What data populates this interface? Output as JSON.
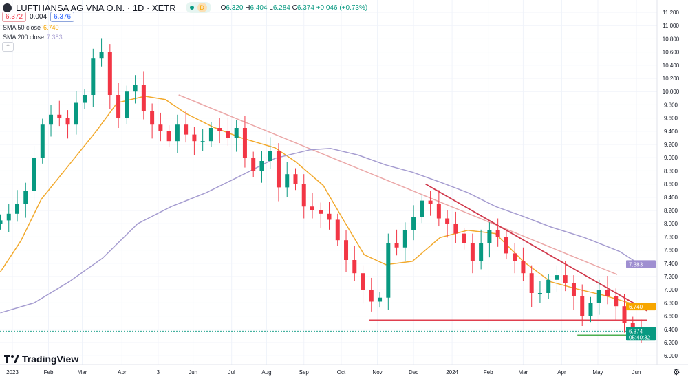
{
  "header": {
    "symbol_title": "LUFTHANSA AG VNA O.N. · 1D · XETR",
    "interval_badge": "D",
    "ohlc": {
      "o_label": "O",
      "o": "6.320",
      "h_label": "H",
      "h": "6.404",
      "l_label": "L",
      "l": "6.284",
      "c_label": "C",
      "c": "6.374",
      "change": "+0.046 (+0.73%)"
    },
    "bid": "6.372",
    "spread": "0.004",
    "ask": "6.376",
    "indicators": [
      {
        "label": "SMA 50 close",
        "value": "6.740",
        "color": "#f7a600"
      },
      {
        "label": "SMA 200 close",
        "value": "7.383",
        "color": "#9f95c8"
      }
    ],
    "collapse_icon": "chevron-up-icon"
  },
  "branding": {
    "logo_text": "TradingView"
  },
  "colors": {
    "up": "#089981",
    "down": "#f23645",
    "sma50": "#f2a92c",
    "sma200": "#a59cd0",
    "trend_light": "#eba7a7",
    "trend_red": "#d0384b",
    "support_red": "#e0404f",
    "support_green": "#4caf50"
  },
  "chart_data": {
    "type": "candlestick",
    "title": "",
    "y_range": [
      5.9,
      11.3
    ],
    "y_ticks": [
      "11.200",
      "11.000",
      "10.800",
      "10.600",
      "10.400",
      "10.200",
      "10.000",
      "9.800",
      "9.600",
      "9.400",
      "9.200",
      "9.000",
      "8.800",
      "8.600",
      "8.400",
      "8.200",
      "8.000",
      "7.800",
      "7.600",
      "7.400",
      "7.200",
      "7.000",
      "6.800",
      "6.600",
      "6.400",
      "6.200",
      "6.000"
    ],
    "x_ticks": [
      {
        "label": "2023",
        "date": "2023-01-02"
      },
      {
        "label": "Feb",
        "date": "2023-02-01"
      },
      {
        "label": "Mar",
        "date": "2023-03-01"
      },
      {
        "label": "Apr",
        "date": "2023-04-03"
      },
      {
        "label": "3",
        "date": "2023-05-03"
      },
      {
        "label": "Jun",
        "date": "2023-06-01"
      },
      {
        "label": "Jul",
        "date": "2023-07-03"
      },
      {
        "label": "Aug",
        "date": "2023-08-01"
      },
      {
        "label": "Sep",
        "date": "2023-09-01"
      },
      {
        "label": "Oct",
        "date": "2023-10-02"
      },
      {
        "label": "Nov",
        "date": "2023-11-01"
      },
      {
        "label": "Dec",
        "date": "2023-12-01"
      },
      {
        "label": "2024",
        "date": "2024-01-02"
      },
      {
        "label": "Feb",
        "date": "2024-02-01"
      },
      {
        "label": "Mar",
        "date": "2024-03-01"
      },
      {
        "label": "Apr",
        "date": "2024-04-02"
      },
      {
        "label": "May",
        "date": "2024-05-02"
      },
      {
        "label": "Jun",
        "date": "2024-06-03"
      }
    ],
    "candles_start": "2022-12-23",
    "candles_step_days": 7,
    "closes": [
      8.05,
      8.15,
      8.3,
      8.5,
      9.0,
      9.5,
      9.65,
      9.6,
      9.5,
      9.83,
      9.95,
      10.5,
      10.6,
      9.95,
      9.6,
      10.0,
      10.1,
      9.7,
      9.5,
      9.4,
      9.25,
      9.5,
      9.35,
      9.25,
      9.25,
      9.45,
      9.4,
      9.3,
      9.45,
      9.0,
      8.8,
      8.95,
      9.1,
      8.55,
      8.75,
      8.6,
      8.26,
      8.2,
      8.15,
      8.06,
      7.75,
      7.45,
      7.25,
      7.0,
      6.82,
      6.88,
      7.7,
      7.64,
      7.9,
      8.1,
      8.35,
      8.3,
      8.08,
      8.0,
      7.85,
      7.7,
      7.43,
      7.7,
      7.9,
      7.8,
      7.55,
      7.43,
      7.25,
      6.95,
      6.95,
      7.15,
      7.22,
      7.1,
      6.9,
      6.6,
      6.8,
      7.0,
      6.9,
      6.75,
      6.5,
      6.4,
      6.374
    ],
    "series": [
      {
        "name": "SMA 50 close",
        "points": [
          [
            "2022-12-23",
            7.27
          ],
          [
            "2023-01-09",
            7.74
          ],
          [
            "2023-01-26",
            8.37
          ],
          [
            "2023-02-18",
            8.89
          ],
          [
            "2023-03-13",
            9.41
          ],
          [
            "2023-03-30",
            9.83
          ],
          [
            "2023-04-22",
            9.93
          ],
          [
            "2023-05-09",
            9.88
          ],
          [
            "2023-05-26",
            9.67
          ],
          [
            "2023-06-18",
            9.46
          ],
          [
            "2023-07-11",
            9.3
          ],
          [
            "2023-08-08",
            9.15
          ],
          [
            "2023-08-25",
            8.94
          ],
          [
            "2023-09-17",
            8.58
          ],
          [
            "2023-10-04",
            8.05
          ],
          [
            "2023-10-21",
            7.53
          ],
          [
            "2023-11-08",
            7.38
          ],
          [
            "2023-11-30",
            7.43
          ],
          [
            "2023-12-23",
            7.79
          ],
          [
            "2024-01-15",
            7.9
          ],
          [
            "2024-02-07",
            7.85
          ],
          [
            "2024-03-01",
            7.43
          ],
          [
            "2024-03-24",
            7.12
          ],
          [
            "2024-04-15",
            7.01
          ],
          [
            "2024-05-08",
            6.91
          ],
          [
            "2024-06-08",
            6.74
          ]
        ]
      },
      {
        "name": "SMA 200 close",
        "points": [
          [
            "2022-12-23",
            6.65
          ],
          [
            "2023-01-20",
            6.8
          ],
          [
            "2023-02-18",
            7.12
          ],
          [
            "2023-03-18",
            7.48
          ],
          [
            "2023-04-16",
            8.0
          ],
          [
            "2023-05-14",
            8.26
          ],
          [
            "2023-06-12",
            8.47
          ],
          [
            "2023-07-11",
            8.73
          ],
          [
            "2023-08-08",
            8.99
          ],
          [
            "2023-09-06",
            9.12
          ],
          [
            "2023-09-23",
            9.14
          ],
          [
            "2023-10-16",
            9.04
          ],
          [
            "2023-11-08",
            8.89
          ],
          [
            "2023-11-30",
            8.78
          ],
          [
            "2023-12-23",
            8.63
          ],
          [
            "2024-01-15",
            8.47
          ],
          [
            "2024-02-07",
            8.26
          ],
          [
            "2024-03-01",
            8.11
          ],
          [
            "2024-03-24",
            7.95
          ],
          [
            "2024-04-21",
            7.79
          ],
          [
            "2024-05-20",
            7.58
          ],
          [
            "2024-06-06",
            7.38
          ]
        ]
      }
    ],
    "drawings": [
      {
        "kind": "trend_light",
        "from": [
          "2023-05-20",
          9.95
        ],
        "to": [
          "2024-05-18",
          7.23
        ]
      },
      {
        "kind": "trend_red",
        "from": [
          "2023-12-11",
          8.6
        ],
        "to": [
          "2024-06-12",
          6.68
        ]
      },
      {
        "kind": "support_red",
        "from": [
          "2023-10-25",
          6.54
        ],
        "to": [
          "2024-06-12",
          6.54
        ]
      },
      {
        "kind": "support_green",
        "from": [
          "2024-04-15",
          6.31
        ],
        "to": [
          "2024-06-12",
          6.31
        ]
      }
    ],
    "price_labels": [
      {
        "value": 7.383,
        "text": "7.383",
        "color": "#9f8fd1"
      },
      {
        "value": 6.74,
        "text": "6.740",
        "color": "#f7a600"
      },
      {
        "value": 6.374,
        "text": "6.374",
        "sub": "05:40:32",
        "color": "#089981"
      }
    ]
  }
}
